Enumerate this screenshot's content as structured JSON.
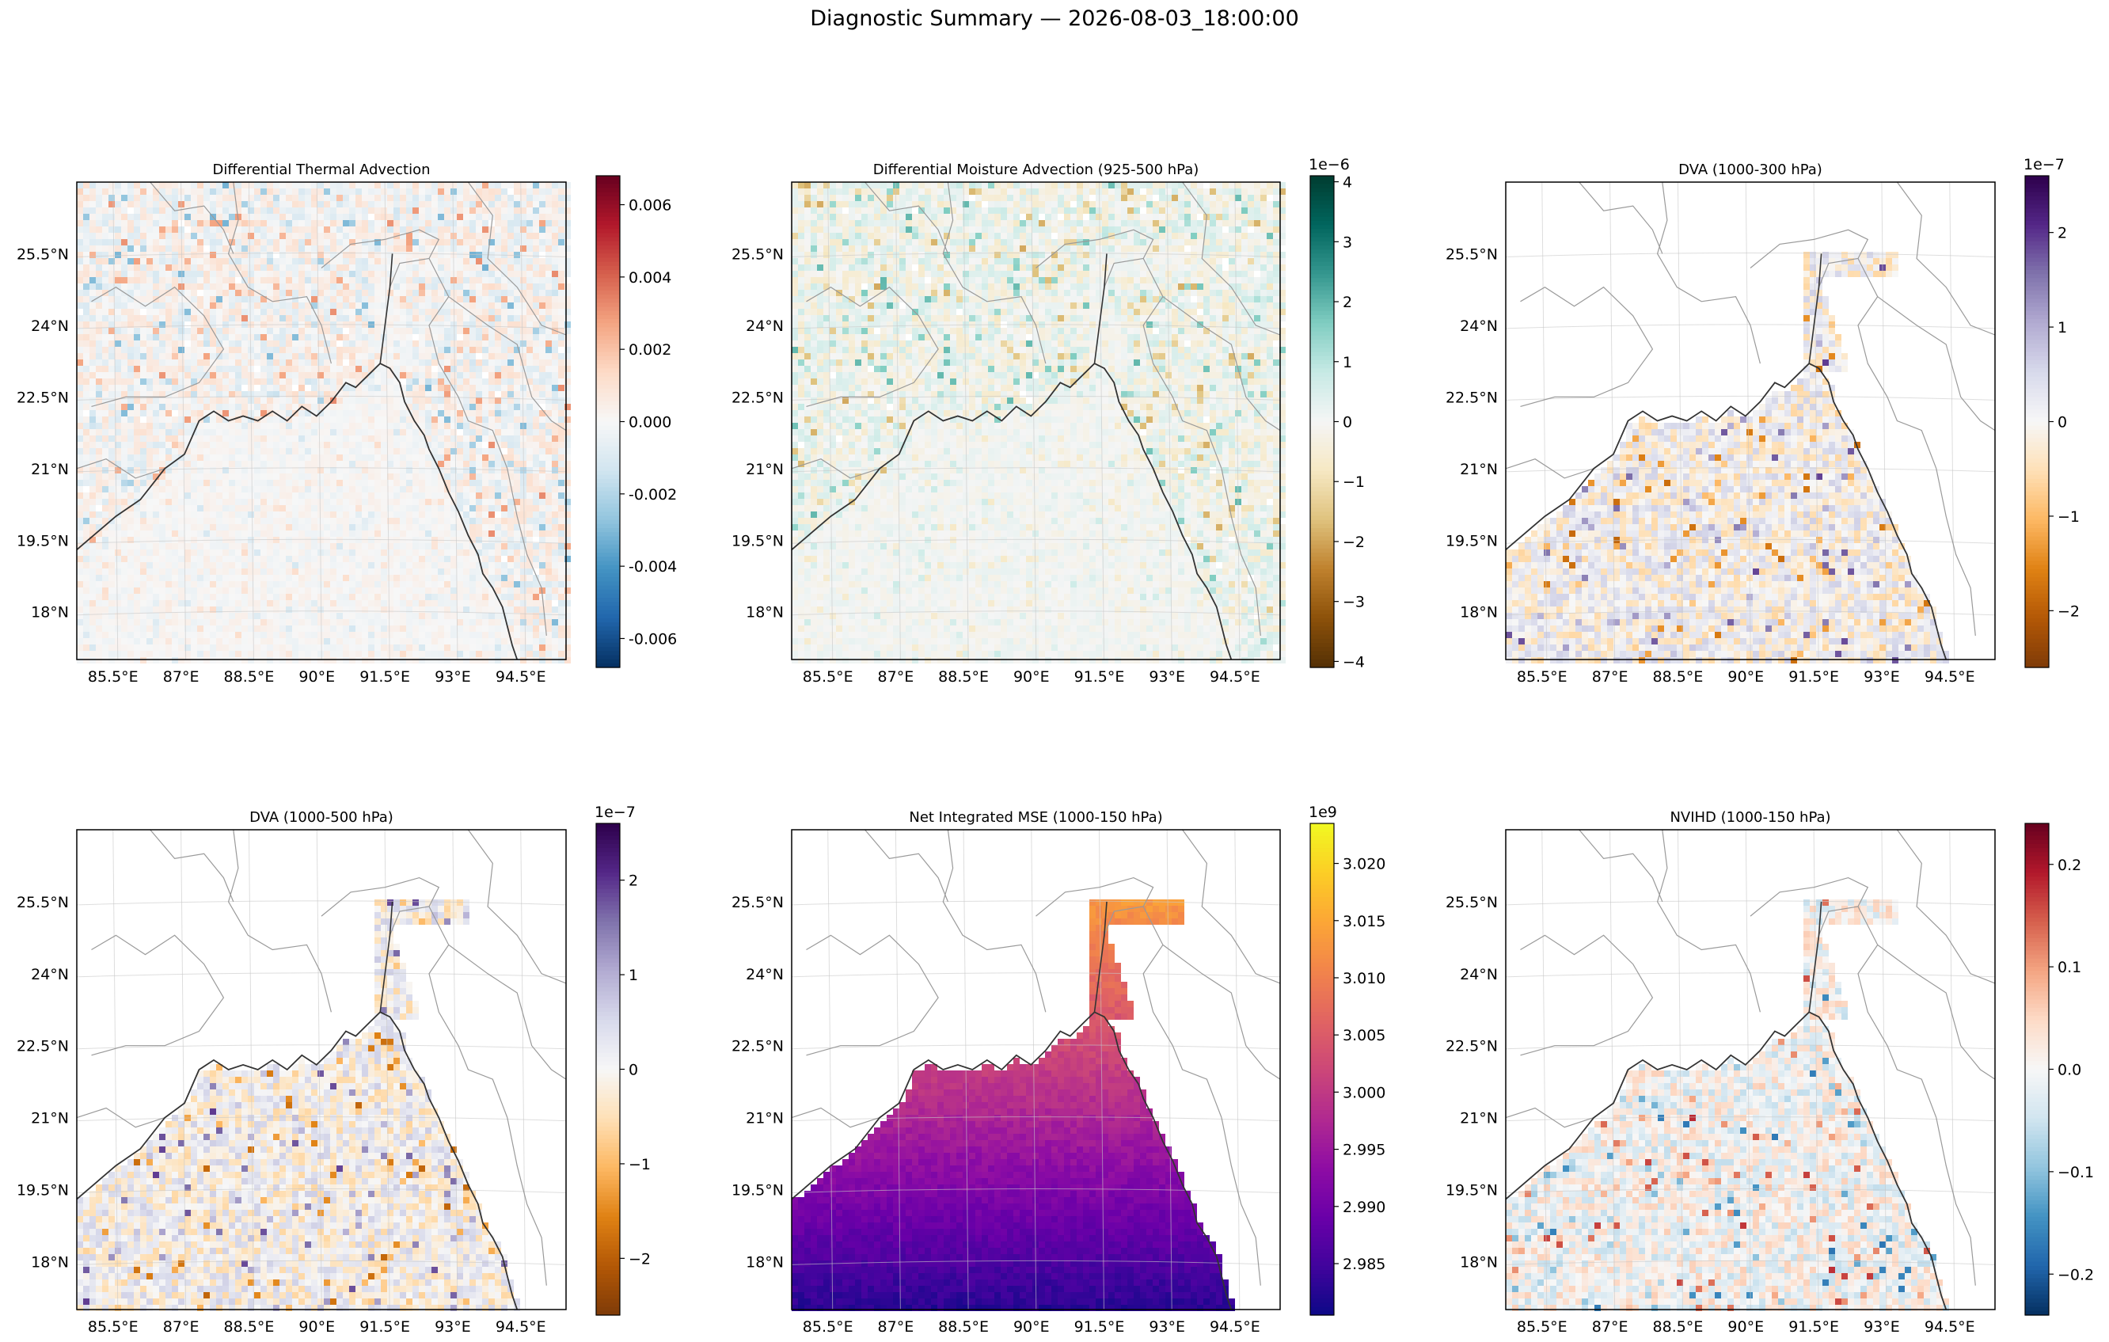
{
  "suptitle": "Diagnostic Summary — 2026-08-03_18:00:00",
  "chart_data": [
    {
      "type": "heatmap",
      "title": "Differential Thermal Advection",
      "colormap": "RdBu_r",
      "colors": [
        "#053061",
        "#2166ac",
        "#4393c3",
        "#92c5de",
        "#d1e5f0",
        "#f7f7f7",
        "#fddbc7",
        "#f4a582",
        "#d6604d",
        "#b2182b",
        "#67001f"
      ],
      "colorbar_ticks": [
        "-0.006",
        "-0.004",
        "-0.002",
        "0.000",
        "0.002",
        "0.004",
        "0.006"
      ],
      "colorbar_tick_values": [
        -0.006,
        -0.004,
        -0.002,
        0.0,
        0.002,
        0.004,
        0.006
      ],
      "clim": [
        -0.0068,
        0.0068
      ],
      "colorbar_offset": "",
      "field": "zero_centered_land",
      "x_ticks": [
        "85.5°E",
        "87°E",
        "88.5°E",
        "90°E",
        "91.5°E",
        "93°E",
        "94.5°E"
      ],
      "y_ticks": [
        "25.5°N",
        "24°N",
        "22.5°N",
        "21°N",
        "19.5°N",
        "18°N"
      ]
    },
    {
      "type": "heatmap",
      "title": "Differential Moisture Advection (925-500 hPa)",
      "colormap": "BrBG",
      "colors": [
        "#543005",
        "#8c510a",
        "#bf812d",
        "#dfc27d",
        "#f6e8c3",
        "#f5f5f5",
        "#c7eae5",
        "#80cdc1",
        "#35978f",
        "#01665e",
        "#003c30"
      ],
      "colorbar_ticks": [
        "−4",
        "−3",
        "−2",
        "−1",
        "0",
        "1",
        "2",
        "3",
        "4"
      ],
      "colorbar_tick_values": [
        -4,
        -3,
        -2,
        -1,
        0,
        1,
        2,
        3,
        4
      ],
      "clim": [
        -4.1,
        4.1
      ],
      "colorbar_offset": "1e−6",
      "field": "zero_centered_land",
      "x_ticks": [
        "85.5°E",
        "87°E",
        "88.5°E",
        "90°E",
        "91.5°E",
        "93°E",
        "94.5°E"
      ],
      "y_ticks": [
        "25.5°N",
        "24°N",
        "22.5°N",
        "21°N",
        "19.5°N",
        "18°N"
      ]
    },
    {
      "type": "heatmap",
      "title": "DVA (1000-300 hPa)",
      "colormap": "PuOr",
      "colors": [
        "#7f3b08",
        "#b35806",
        "#e08214",
        "#fdb863",
        "#fee0b6",
        "#f7f7f7",
        "#d8daeb",
        "#b2abd2",
        "#8073ac",
        "#542788",
        "#2d004b"
      ],
      "colorbar_ticks": [
        "−2",
        "−1",
        "0",
        "1",
        "2"
      ],
      "colorbar_tick_values": [
        -2,
        -1,
        0,
        1,
        2
      ],
      "clim": [
        -2.6,
        2.6
      ],
      "colorbar_offset": "1e−7",
      "field": "zero_centered_ocean",
      "x_ticks": [
        "85.5°E",
        "87°E",
        "88.5°E",
        "90°E",
        "91.5°E",
        "93°E",
        "94.5°E"
      ],
      "y_ticks": [
        "25.5°N",
        "24°N",
        "22.5°N",
        "21°N",
        "19.5°N",
        "18°N"
      ]
    },
    {
      "type": "heatmap",
      "title": "DVA (1000-500 hPa)",
      "colormap": "PuOr",
      "colors": [
        "#7f3b08",
        "#b35806",
        "#e08214",
        "#fdb863",
        "#fee0b6",
        "#f7f7f7",
        "#d8daeb",
        "#b2abd2",
        "#8073ac",
        "#542788",
        "#2d004b"
      ],
      "colorbar_ticks": [
        "−2",
        "−1",
        "0",
        "1",
        "2"
      ],
      "colorbar_tick_values": [
        -2,
        -1,
        0,
        1,
        2
      ],
      "clim": [
        -2.6,
        2.6
      ],
      "colorbar_offset": "1e−7",
      "field": "zero_centered_ocean",
      "x_ticks": [
        "85.5°E",
        "87°E",
        "88.5°E",
        "90°E",
        "91.5°E",
        "93°E",
        "94.5°E"
      ],
      "y_ticks": [
        "25.5°N",
        "24°N",
        "22.5°N",
        "21°N",
        "19.5°N",
        "18°N"
      ]
    },
    {
      "type": "heatmap",
      "title": "Net Integrated MSE (1000-150 hPa)",
      "colormap": "plasma",
      "colors": [
        "#0d0887",
        "#41049d",
        "#6a00a8",
        "#8f0da4",
        "#b12a90",
        "#cc4778",
        "#e16462",
        "#f2844b",
        "#fca636",
        "#fcce25",
        "#f0f921"
      ],
      "colorbar_ticks": [
        "2.985",
        "2.990",
        "2.995",
        "3.000",
        "3.005",
        "3.010",
        "3.015",
        "3.020"
      ],
      "colorbar_tick_values": [
        2.985,
        2.99,
        2.995,
        3.0,
        3.005,
        3.01,
        3.015,
        3.02
      ],
      "clim": [
        2.9805,
        3.0235
      ],
      "colorbar_offset": "1e9",
      "field": "mse_ocean",
      "x_ticks": [
        "85.5°E",
        "87°E",
        "88.5°E",
        "90°E",
        "91.5°E",
        "93°E",
        "94.5°E"
      ],
      "y_ticks": [
        "25.5°N",
        "24°N",
        "22.5°N",
        "21°N",
        "19.5°N",
        "18°N"
      ]
    },
    {
      "type": "heatmap",
      "title": "NVIHD (1000-150 hPa)",
      "colormap": "RdBu_r",
      "colors": [
        "#053061",
        "#2166ac",
        "#4393c3",
        "#92c5de",
        "#d1e5f0",
        "#f7f7f7",
        "#fddbc7",
        "#f4a582",
        "#d6604d",
        "#b2182b",
        "#67001f"
      ],
      "colorbar_ticks": [
        "−0.2",
        "−0.1",
        "0.0",
        "0.1",
        "0.2"
      ],
      "colorbar_tick_values": [
        -0.2,
        -0.1,
        0.0,
        0.1,
        0.2
      ],
      "clim": [
        -0.24,
        0.24
      ],
      "colorbar_offset": "",
      "field": "zero_centered_ocean",
      "x_ticks": [
        "85.5°E",
        "87°E",
        "88.5°E",
        "90°E",
        "91.5°E",
        "93°E",
        "94.5°E"
      ],
      "y_ticks": [
        "25.5°N",
        "24°N",
        "22.5°N",
        "21°N",
        "19.5°N",
        "18°N"
      ]
    }
  ]
}
